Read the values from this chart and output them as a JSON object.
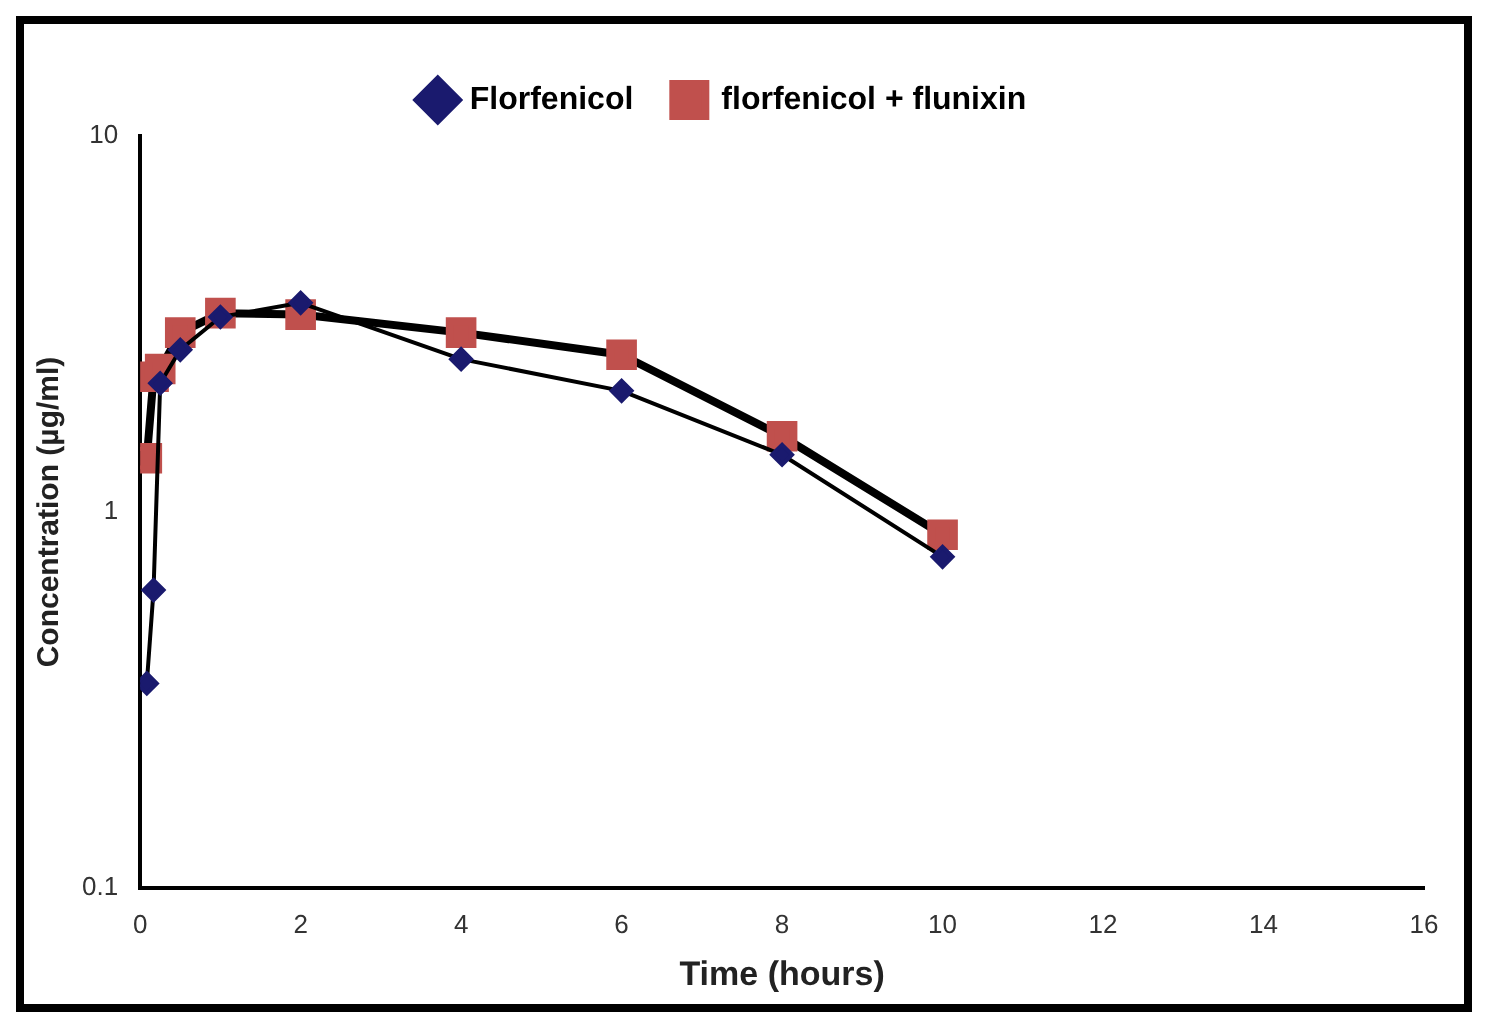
{
  "chart_data": {
    "type": "line",
    "xlabel": "Time (hours)",
    "ylabel": "Concentration (µg/ml)",
    "log": "y",
    "xlim": [
      0,
      16
    ],
    "xticks": [
      0,
      2,
      4,
      6,
      8,
      10,
      12,
      14,
      16
    ],
    "ylim": [
      0.1,
      10
    ],
    "yticks": [
      0.1,
      1,
      10
    ],
    "grid": false,
    "legend": "top",
    "line_style": "solid",
    "series": [
      {
        "name": "Florfenicol",
        "color": "#1a1a6e",
        "marker": "diamond",
        "x": [
          0.083,
          0.167,
          0.25,
          0.5,
          1,
          2,
          4,
          6,
          8,
          10
        ],
        "values": [
          0.35,
          0.62,
          2.2,
          2.7,
          3.3,
          3.6,
          2.55,
          2.1,
          1.42,
          0.76
        ]
      },
      {
        "name": "florfenicol + flunixin",
        "color": "#c0504d",
        "marker": "square",
        "x": [
          0.083,
          0.167,
          0.25,
          0.5,
          1,
          2,
          4,
          6,
          8,
          10
        ],
        "values": [
          1.39,
          2.29,
          2.4,
          3.0,
          3.38,
          3.35,
          3.0,
          2.62,
          1.59,
          0.87
        ]
      }
    ]
  }
}
